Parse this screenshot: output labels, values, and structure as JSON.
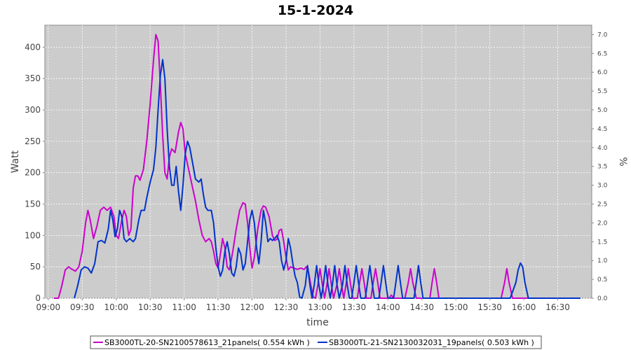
{
  "chart_data": {
    "type": "line",
    "title": "15-1-2024",
    "xlabel": "time",
    "ylabel": "Watt",
    "ylabel_right": "%",
    "xlim": [
      "08:57",
      "17:00"
    ],
    "ylim": [
      0,
      435
    ],
    "ylim_right": [
      0,
      7.25
    ],
    "x_ticks": [
      "09:00",
      "09:30",
      "10:00",
      "10:30",
      "11:00",
      "11:30",
      "12:00",
      "12:30",
      "13:00",
      "13:30",
      "14:00",
      "14:30",
      "15:00",
      "15:30",
      "16:00",
      "16:30"
    ],
    "y_ticks": [
      0,
      50,
      100,
      150,
      200,
      250,
      300,
      350,
      400
    ],
    "y_ticks_right": [
      "0.0",
      "0.5",
      "1.0",
      "1.5",
      "2.0",
      "2.5",
      "3.0",
      "3.5",
      "4.0",
      "4.5",
      "5.0",
      "5.5",
      "6.0",
      "6.5",
      "7.0"
    ],
    "grid": true,
    "legend_position": "bottom",
    "colors": {
      "plot_bg": "#cccccc",
      "grid": "#ffffff",
      "series1": "#cc00cc",
      "series2": "#0033cc"
    },
    "series": [
      {
        "name": "SB3000TL-20-SN2100578613_21panels( 0.554 kWh )",
        "color": "#cc00cc",
        "points": [
          [
            "09:05",
            0
          ],
          [
            "09:09",
            0
          ],
          [
            "09:12",
            20
          ],
          [
            "09:15",
            45
          ],
          [
            "09:18",
            50
          ],
          [
            "09:21",
            46
          ],
          [
            "09:24",
            43
          ],
          [
            "09:27",
            50
          ],
          [
            "09:30",
            75
          ],
          [
            "09:33",
            120
          ],
          [
            "09:35",
            140
          ],
          [
            "09:37",
            125
          ],
          [
            "09:40",
            95
          ],
          [
            "09:43",
            115
          ],
          [
            "09:46",
            140
          ],
          [
            "09:49",
            145
          ],
          [
            "09:52",
            140
          ],
          [
            "09:55",
            145
          ],
          [
            "09:58",
            130
          ],
          [
            "10:00",
            100
          ],
          [
            "10:02",
            95
          ],
          [
            "10:05",
            125
          ],
          [
            "10:07",
            140
          ],
          [
            "10:09",
            130
          ],
          [
            "10:11",
            100
          ],
          [
            "10:13",
            110
          ],
          [
            "10:15",
            175
          ],
          [
            "10:17",
            195
          ],
          [
            "10:19",
            195
          ],
          [
            "10:21",
            188
          ],
          [
            "10:24",
            205
          ],
          [
            "10:27",
            250
          ],
          [
            "10:30",
            310
          ],
          [
            "10:33",
            380
          ],
          [
            "10:35",
            420
          ],
          [
            "10:37",
            410
          ],
          [
            "10:39",
            340
          ],
          [
            "10:41",
            260
          ],
          [
            "10:43",
            200
          ],
          [
            "10:45",
            190
          ],
          [
            "10:47",
            225
          ],
          [
            "10:49",
            238
          ],
          [
            "10:52",
            232
          ],
          [
            "10:55",
            265
          ],
          [
            "10:57",
            280
          ],
          [
            "10:59",
            270
          ],
          [
            "11:01",
            230
          ],
          [
            "11:04",
            205
          ],
          [
            "11:07",
            180
          ],
          [
            "11:10",
            155
          ],
          [
            "11:13",
            125
          ],
          [
            "11:16",
            100
          ],
          [
            "11:19",
            90
          ],
          [
            "11:22",
            95
          ],
          [
            "11:24",
            90
          ],
          [
            "11:26",
            75
          ],
          [
            "11:28",
            55
          ],
          [
            "11:30",
            48
          ],
          [
            "11:32",
            70
          ],
          [
            "11:34",
            95
          ],
          [
            "11:36",
            80
          ],
          [
            "11:38",
            50
          ],
          [
            "11:40",
            45
          ],
          [
            "11:43",
            75
          ],
          [
            "11:46",
            110
          ],
          [
            "11:49",
            140
          ],
          [
            "11:52",
            152
          ],
          [
            "11:54",
            150
          ],
          [
            "11:56",
            120
          ],
          [
            "11:58",
            80
          ],
          [
            "12:00",
            48
          ],
          [
            "12:02",
            65
          ],
          [
            "12:05",
            110
          ],
          [
            "12:08",
            140
          ],
          [
            "12:10",
            147
          ],
          [
            "12:12",
            145
          ],
          [
            "12:15",
            130
          ],
          [
            "12:18",
            100
          ],
          [
            "12:20",
            92
          ],
          [
            "12:22",
            94
          ],
          [
            "12:24",
            108
          ],
          [
            "12:26",
            110
          ],
          [
            "12:28",
            90
          ],
          [
            "12:30",
            65
          ],
          [
            "12:32",
            45
          ],
          [
            "12:34",
            50
          ],
          [
            "12:37",
            48
          ],
          [
            "12:40",
            46
          ],
          [
            "12:43",
            48
          ],
          [
            "12:46",
            46
          ],
          [
            "12:48",
            50
          ],
          [
            "12:50",
            40
          ],
          [
            "12:52",
            20
          ],
          [
            "12:54",
            2
          ],
          [
            "12:56",
            0
          ],
          [
            "12:58",
            20
          ],
          [
            "13:00",
            47
          ],
          [
            "13:02",
            22
          ],
          [
            "13:04",
            0
          ],
          [
            "13:06",
            20
          ],
          [
            "13:08",
            47
          ],
          [
            "13:10",
            22
          ],
          [
            "13:12",
            0
          ],
          [
            "13:15",
            22
          ],
          [
            "13:17",
            47
          ],
          [
            "13:19",
            22
          ],
          [
            "13:21",
            0
          ],
          [
            "13:23",
            22
          ],
          [
            "13:25",
            47
          ],
          [
            "13:27",
            22
          ],
          [
            "13:29",
            0
          ],
          [
            "13:33",
            0
          ],
          [
            "13:35",
            25
          ],
          [
            "13:37",
            47
          ],
          [
            "13:39",
            25
          ],
          [
            "13:41",
            0
          ],
          [
            "13:45",
            0
          ],
          [
            "13:47",
            25
          ],
          [
            "13:49",
            47
          ],
          [
            "13:51",
            25
          ],
          [
            "13:53",
            0
          ],
          [
            "14:01",
            0
          ],
          [
            "14:03",
            5
          ],
          [
            "14:05",
            0
          ],
          [
            "14:12",
            0
          ],
          [
            "14:15",
            0
          ],
          [
            "14:18",
            25
          ],
          [
            "14:20",
            47
          ],
          [
            "14:22",
            25
          ],
          [
            "14:25",
            0
          ],
          [
            "14:35",
            0
          ],
          [
            "14:37",
            0
          ],
          [
            "14:39",
            25
          ],
          [
            "14:41",
            47
          ],
          [
            "14:43",
            25
          ],
          [
            "14:45",
            0
          ],
          [
            "15:40",
            0
          ],
          [
            "15:43",
            25
          ],
          [
            "15:45",
            47
          ],
          [
            "15:47",
            25
          ],
          [
            "15:50",
            0
          ],
          [
            "16:05",
            0
          ],
          [
            "16:20",
            0
          ],
          [
            "16:40",
            0
          ]
        ]
      },
      {
        "name": "SB3000TL-21-SN2130032031_19panels( 0.503 kWh )",
        "color": "#0033cc",
        "points": [
          [
            "09:23",
            0
          ],
          [
            "09:26",
            20
          ],
          [
            "09:29",
            45
          ],
          [
            "09:32",
            50
          ],
          [
            "09:35",
            48
          ],
          [
            "09:38",
            40
          ],
          [
            "09:41",
            55
          ],
          [
            "09:44",
            90
          ],
          [
            "09:47",
            92
          ],
          [
            "09:50",
            88
          ],
          [
            "09:53",
            110
          ],
          [
            "09:55",
            140
          ],
          [
            "09:57",
            125
          ],
          [
            "09:59",
            98
          ],
          [
            "10:01",
            110
          ],
          [
            "10:03",
            140
          ],
          [
            "10:05",
            130
          ],
          [
            "10:07",
            95
          ],
          [
            "10:09",
            90
          ],
          [
            "10:12",
            95
          ],
          [
            "10:15",
            90
          ],
          [
            "10:17",
            95
          ],
          [
            "10:20",
            125
          ],
          [
            "10:22",
            140
          ],
          [
            "10:25",
            140
          ],
          [
            "10:27",
            160
          ],
          [
            "10:30",
            185
          ],
          [
            "10:33",
            205
          ],
          [
            "10:35",
            240
          ],
          [
            "10:37",
            300
          ],
          [
            "10:39",
            355
          ],
          [
            "10:41",
            380
          ],
          [
            "10:43",
            350
          ],
          [
            "10:45",
            270
          ],
          [
            "10:47",
            210
          ],
          [
            "10:49",
            180
          ],
          [
            "10:51",
            180
          ],
          [
            "10:53",
            210
          ],
          [
            "10:55",
            170
          ],
          [
            "10:57",
            140
          ],
          [
            "10:59",
            180
          ],
          [
            "11:01",
            230
          ],
          [
            "11:03",
            250
          ],
          [
            "11:05",
            240
          ],
          [
            "11:08",
            210
          ],
          [
            "11:10",
            190
          ],
          [
            "11:13",
            185
          ],
          [
            "11:15",
            190
          ],
          [
            "11:17",
            165
          ],
          [
            "11:19",
            145
          ],
          [
            "11:21",
            140
          ],
          [
            "11:24",
            140
          ],
          [
            "11:26",
            120
          ],
          [
            "11:28",
            80
          ],
          [
            "11:30",
            50
          ],
          [
            "11:32",
            35
          ],
          [
            "11:34",
            45
          ],
          [
            "11:36",
            75
          ],
          [
            "11:38",
            90
          ],
          [
            "11:40",
            70
          ],
          [
            "11:42",
            40
          ],
          [
            "11:44",
            35
          ],
          [
            "11:46",
            50
          ],
          [
            "11:48",
            80
          ],
          [
            "11:50",
            70
          ],
          [
            "11:52",
            45
          ],
          [
            "11:54",
            55
          ],
          [
            "11:56",
            90
          ],
          [
            "11:58",
            125
          ],
          [
            "12:00",
            140
          ],
          [
            "12:02",
            120
          ],
          [
            "12:04",
            80
          ],
          [
            "12:06",
            55
          ],
          [
            "12:08",
            90
          ],
          [
            "12:10",
            140
          ],
          [
            "12:12",
            120
          ],
          [
            "12:14",
            90
          ],
          [
            "12:16",
            95
          ],
          [
            "12:18",
            92
          ],
          [
            "12:20",
            95
          ],
          [
            "12:22",
            100
          ],
          [
            "12:24",
            90
          ],
          [
            "12:26",
            60
          ],
          [
            "12:28",
            45
          ],
          [
            "12:30",
            60
          ],
          [
            "12:32",
            95
          ],
          [
            "12:34",
            80
          ],
          [
            "12:36",
            55
          ],
          [
            "12:38",
            35
          ],
          [
            "12:40",
            25
          ],
          [
            "12:42",
            2
          ],
          [
            "12:44",
            0
          ],
          [
            "12:47",
            20
          ],
          [
            "12:49",
            52
          ],
          [
            "12:51",
            22
          ],
          [
            "12:53",
            0
          ],
          [
            "12:55",
            22
          ],
          [
            "12:57",
            52
          ],
          [
            "12:59",
            22
          ],
          [
            "13:01",
            0
          ],
          [
            "13:03",
            22
          ],
          [
            "13:05",
            52
          ],
          [
            "13:07",
            22
          ],
          [
            "13:09",
            0
          ],
          [
            "13:11",
            22
          ],
          [
            "13:13",
            52
          ],
          [
            "13:15",
            22
          ],
          [
            "13:17",
            0
          ],
          [
            "13:20",
            22
          ],
          [
            "13:22",
            52
          ],
          [
            "13:24",
            22
          ],
          [
            "13:26",
            0
          ],
          [
            "13:28",
            0
          ],
          [
            "13:30",
            25
          ],
          [
            "13:32",
            52
          ],
          [
            "13:34",
            25
          ],
          [
            "13:36",
            0
          ],
          [
            "13:40",
            0
          ],
          [
            "13:42",
            25
          ],
          [
            "13:44",
            52
          ],
          [
            "13:46",
            25
          ],
          [
            "13:48",
            0
          ],
          [
            "13:52",
            0
          ],
          [
            "13:54",
            25
          ],
          [
            "13:56",
            52
          ],
          [
            "13:58",
            25
          ],
          [
            "14:00",
            0
          ],
          [
            "14:05",
            0
          ],
          [
            "14:07",
            25
          ],
          [
            "14:09",
            52
          ],
          [
            "14:11",
            25
          ],
          [
            "14:13",
            0
          ],
          [
            "14:23",
            0
          ],
          [
            "14:25",
            25
          ],
          [
            "14:27",
            52
          ],
          [
            "14:29",
            25
          ],
          [
            "14:31",
            0
          ],
          [
            "15:48",
            0
          ],
          [
            "15:53",
            25
          ],
          [
            "15:55",
            45
          ],
          [
            "15:57",
            56
          ],
          [
            "15:59",
            50
          ],
          [
            "16:01",
            25
          ],
          [
            "16:04",
            0
          ],
          [
            "16:50",
            0
          ]
        ]
      }
    ]
  }
}
